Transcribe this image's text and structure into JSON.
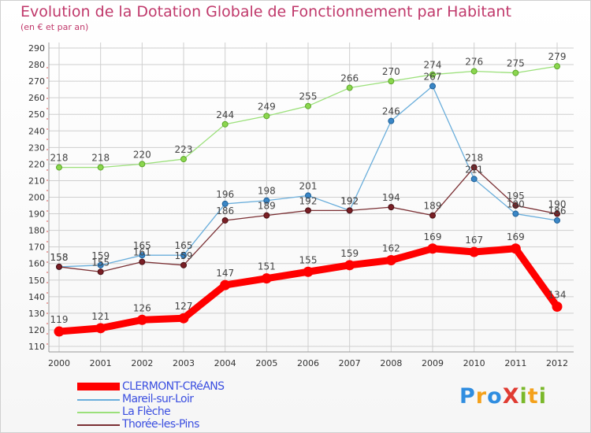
{
  "title": "Evolution de la Dotation Globale de Fonctionnement par Habitant",
  "subtitle": "(en € et par an)",
  "logo": {
    "text": "ProXiti",
    "colors": [
      "#2f8de0",
      "#f4a11b",
      "#2f8de0",
      "#e03c33",
      "#7ab82a",
      "#f4a11b",
      "#7ab82a"
    ]
  },
  "chart_data": {
    "type": "line",
    "title": "Evolution de la Dotation Globale de Fonctionnement par Habitant",
    "subtitle": "(en € et par an)",
    "x": [
      "2000",
      "2001",
      "2002",
      "2003",
      "2004",
      "2005",
      "2006",
      "2007",
      "2008",
      "2009",
      "2010",
      "2011",
      "2012"
    ],
    "ylim": [
      110,
      290
    ],
    "yticks": [
      110,
      120,
      130,
      140,
      150,
      160,
      170,
      180,
      190,
      200,
      210,
      220,
      230,
      240,
      250,
      260,
      270,
      280,
      290
    ],
    "grid": true,
    "legend_position": "bottom-left",
    "series": [
      {
        "name": "CLERMONT-CRéANS",
        "color": "#ff0000",
        "values": [
          119,
          121,
          126,
          127,
          147,
          151,
          155,
          159,
          162,
          169,
          167,
          169,
          134
        ],
        "labels": [
          "119",
          "121",
          "126",
          "127",
          "147",
          "151",
          "155",
          "159",
          "162",
          "169",
          "167",
          "169",
          "134"
        ]
      },
      {
        "name": "Mareil-sur-Loir",
        "color": "#6aaedb",
        "values": [
          158,
          159,
          165,
          165,
          196,
          198,
          201,
          192,
          246,
          267,
          211,
          190,
          186
        ],
        "labels": [
          "158",
          "159",
          "165",
          "165",
          "196",
          "198",
          "201",
          "192",
          "246",
          "267",
          "211",
          "190",
          "186"
        ]
      },
      {
        "name": "La Flèche",
        "color": "#9be07a",
        "values": [
          218,
          218,
          220,
          223,
          244,
          249,
          255,
          266,
          270,
          274,
          276,
          275,
          279
        ],
        "labels": [
          "218",
          "218",
          "220",
          "223",
          "244",
          "249",
          "255",
          "266",
          "270",
          "274",
          "276",
          "275",
          "279"
        ]
      },
      {
        "name": "Thorée-les-Pins",
        "color": "#7a2f33",
        "values": [
          158,
          155,
          161,
          159,
          186,
          189,
          192,
          192,
          194,
          189,
          218,
          195,
          190
        ],
        "labels": [
          "158",
          "155",
          "161",
          "159",
          "186",
          "189",
          "192",
          "192",
          "194",
          "189",
          "218",
          "195",
          "190"
        ]
      }
    ]
  }
}
